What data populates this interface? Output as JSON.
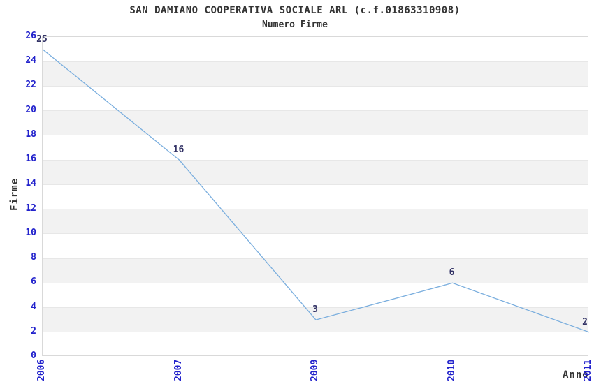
{
  "chart_data": {
    "type": "line",
    "title": "SAN DAMIANO COOPERATIVA SOCIALE ARL (c.f.01863310908)",
    "subtitle": "Numero Firme",
    "xlabel": "Anno",
    "ylabel": "Firme",
    "categories": [
      "2006",
      "2007",
      "2009",
      "2010",
      "2011"
    ],
    "series": [
      {
        "name": "Numero Firme",
        "values": [
          25,
          16,
          3,
          6,
          2
        ]
      }
    ],
    "ylim": [
      0,
      26
    ],
    "ytick_step": 2,
    "yticks": [
      0,
      2,
      4,
      6,
      8,
      10,
      12,
      14,
      16,
      18,
      20,
      22,
      24,
      26
    ],
    "grid": "horizontal-alternating-bands",
    "legend_position": "none",
    "point_labels": [
      "25",
      "16",
      "3",
      "6",
      "2"
    ]
  },
  "colors": {
    "line": "#7aaede",
    "tick_label": "#2222cc",
    "data_label": "#333366",
    "axis_title": "#333333",
    "title": "#333333",
    "band": "#f2f2f2",
    "gridline": "#e7e7e7",
    "border": "#d9d9d9",
    "background": "#ffffff"
  }
}
